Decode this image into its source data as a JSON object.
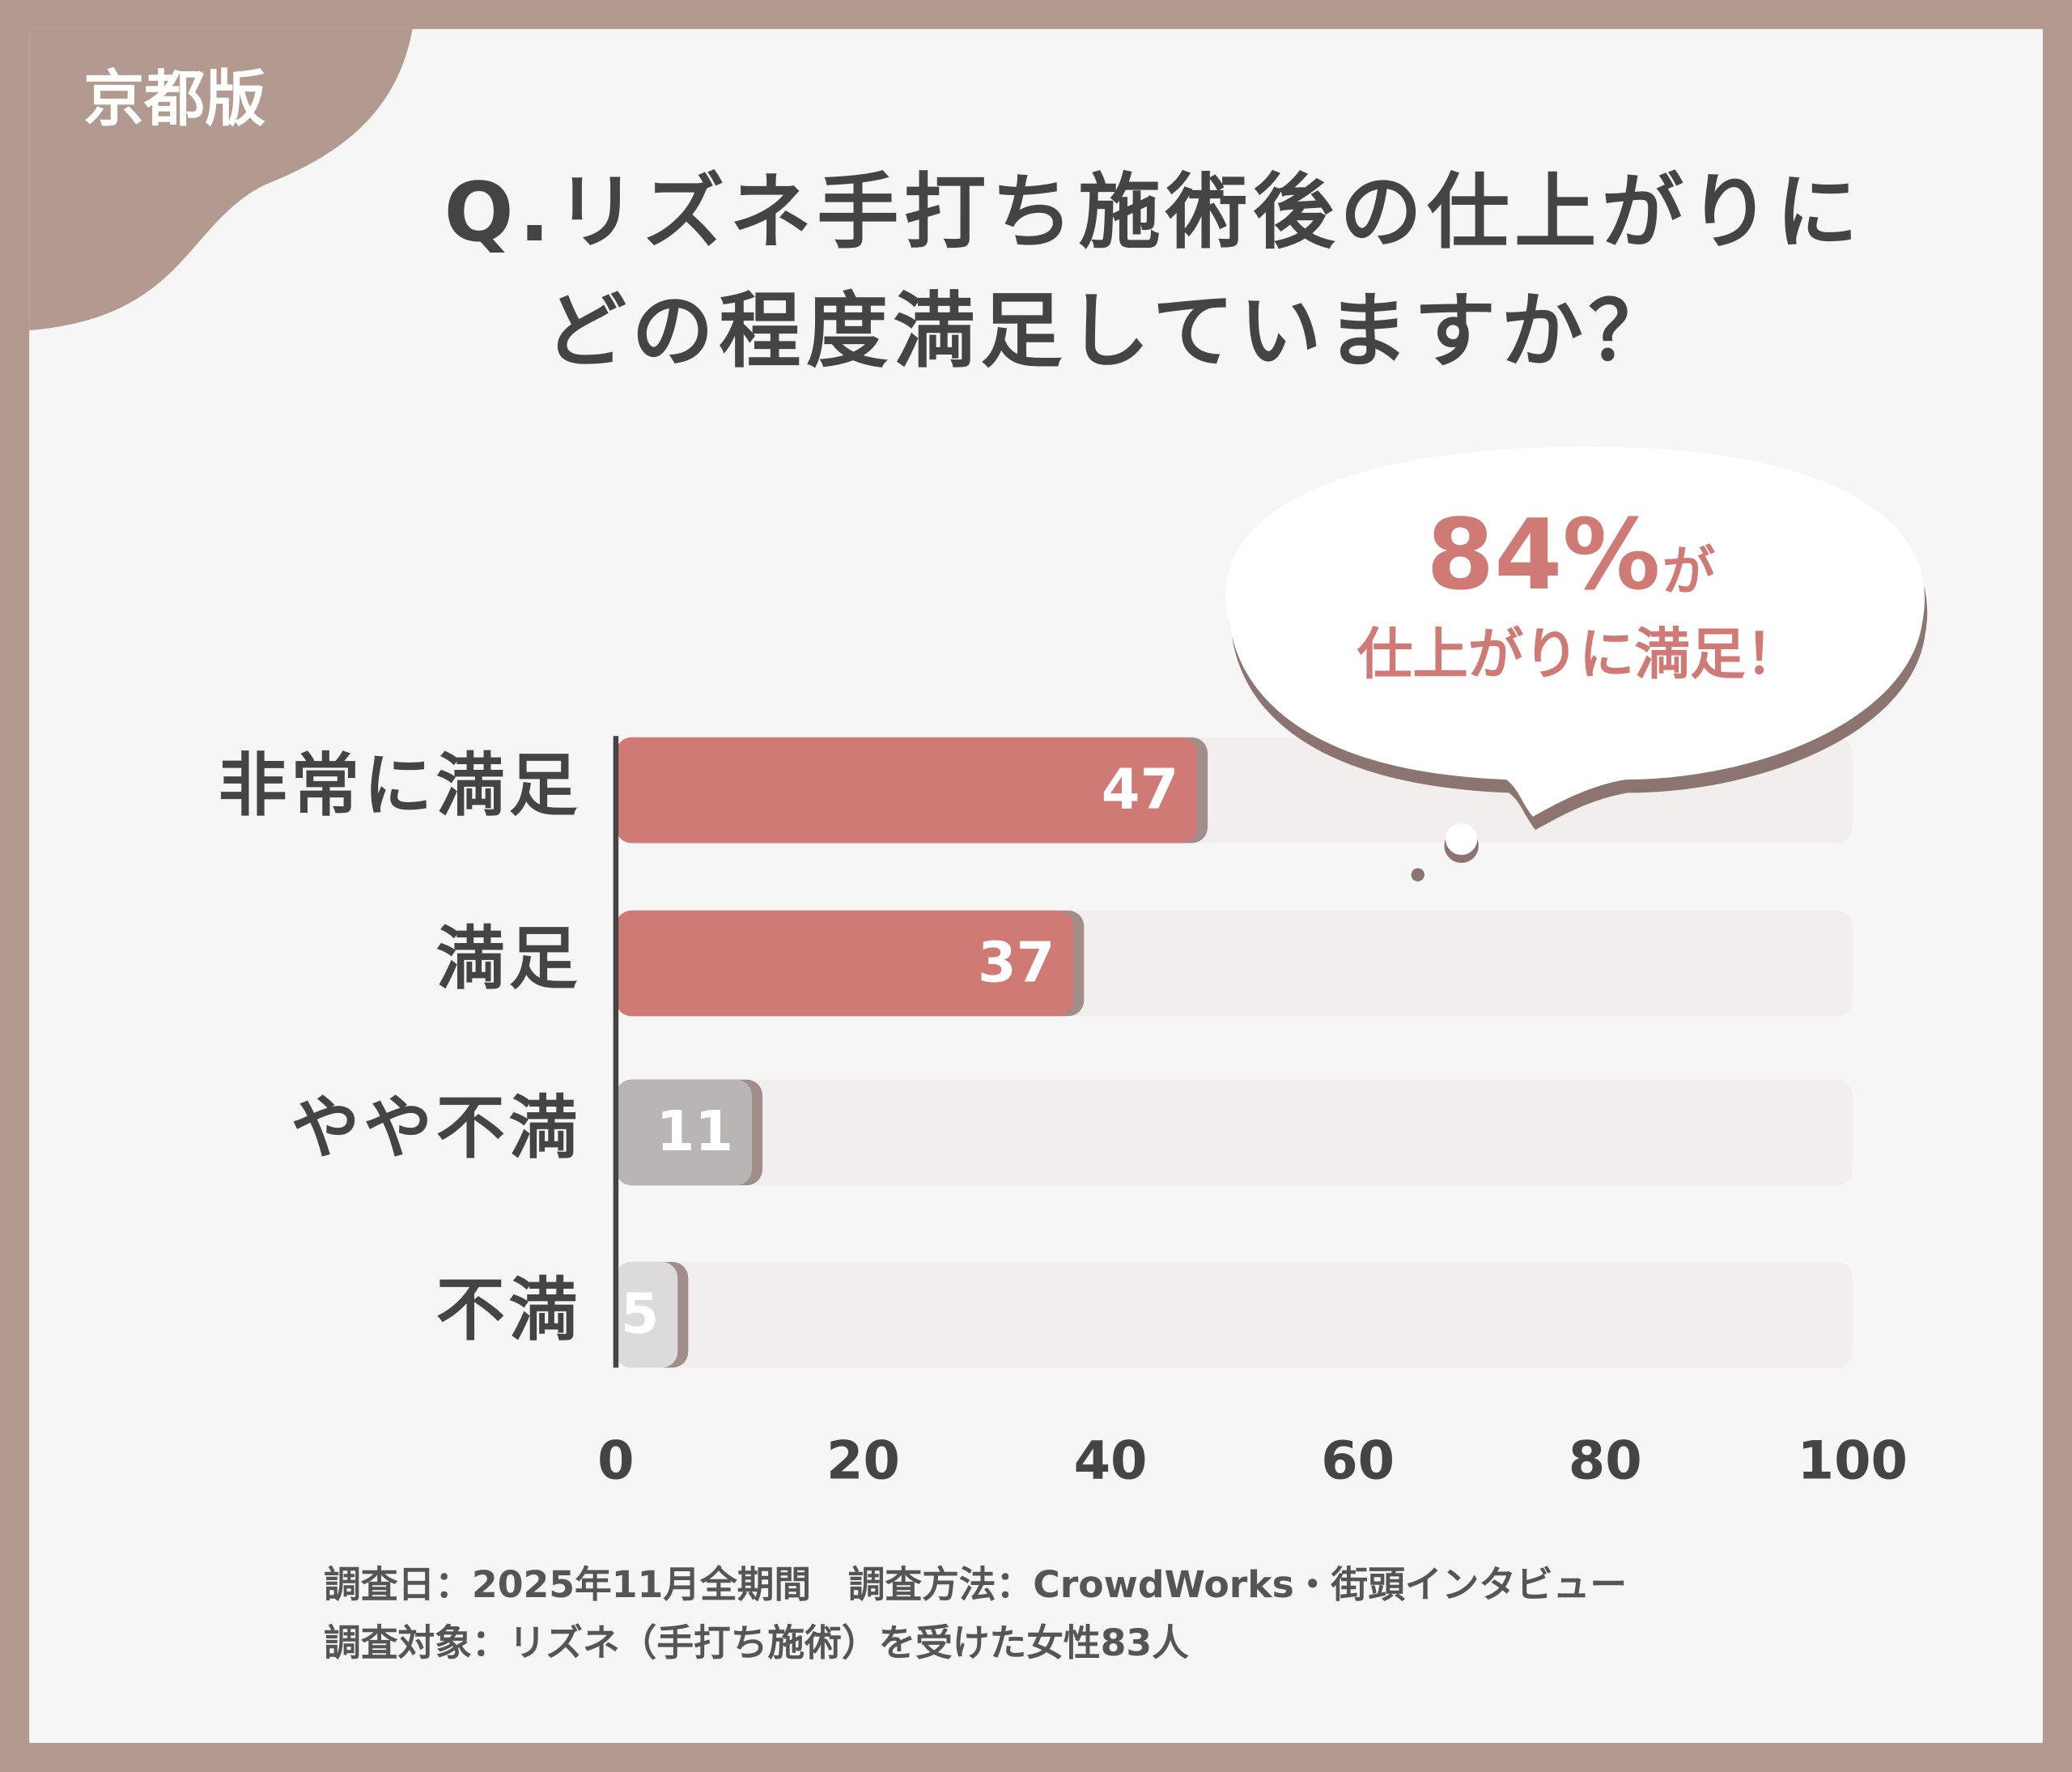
{
  "badge": "京都版",
  "title_lines": [
    "Q.リズネ手打ち施術後の仕上がりに",
    "どの程度満足していますか？"
  ],
  "callout": {
    "highlight": "84%",
    "suffix": "が",
    "text": "仕上がりに満足！"
  },
  "footer_lines": [
    "調査日：2025年11月全期間　調査方法：CrowdWorks・街頭インタビュー",
    "調査対象：リズネ（手打ち施術）を受けた女性83人"
  ],
  "chart_data": {
    "type": "bar",
    "orientation": "horizontal",
    "categories": [
      "非常に満足",
      "満足",
      "やや不満",
      "不満"
    ],
    "values": [
      47,
      37,
      11,
      5
    ],
    "colors": [
      "#d07a76",
      "#d07a76",
      "#b8b5b4",
      "#dcdada"
    ],
    "xlim": [
      0,
      100
    ],
    "xticks": [
      0,
      20,
      40,
      60,
      80,
      100
    ]
  }
}
